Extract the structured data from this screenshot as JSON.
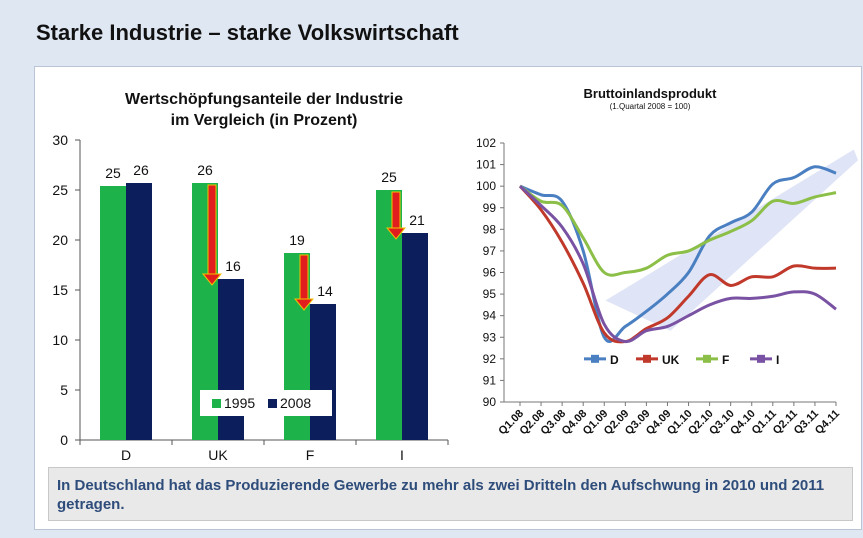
{
  "page": {
    "title": "Starke Industrie – starke Volkswirtschaft",
    "caption": "In Deutschland hat das Produzierende Gewerbe zu mehr als zwei Dritteln den Aufschwung in 2010 und 2011 getragen."
  },
  "colors": {
    "green": "#1eb34a",
    "navy": "#0c1f5c",
    "arrow_red": "#e11d1d",
    "arrow_edge": "#f3c200",
    "line_D": "#4a7fc1",
    "line_UK": "#c0392b",
    "line_F": "#8cbf47",
    "line_I": "#7a52a3"
  },
  "chart_data": [
    {
      "type": "bar",
      "title": "Wertschöpfungsanteile der Industrie im Vergleich (in Prozent)",
      "title_lines": [
        "Wertschöpfungsanteile der Industrie",
        "im Vergleich (in Prozent)"
      ],
      "categories": [
        "D",
        "UK",
        "F",
        "I"
      ],
      "series": [
        {
          "name": "1995",
          "values": [
            25.4,
            25.7,
            18.7,
            25.0
          ],
          "labels": [
            "25",
            "26",
            "19",
            "25"
          ]
        },
        {
          "name": "2008",
          "values": [
            25.7,
            16.1,
            13.6,
            20.7
          ],
          "labels": [
            "26",
            "16",
            "14",
            "21"
          ]
        }
      ],
      "ylim": [
        0,
        30
      ],
      "yticks": [
        0,
        5,
        10,
        15,
        20,
        25,
        30
      ],
      "legend_position": "bottom-center",
      "decline_arrows": [
        "UK",
        "F",
        "I"
      ]
    },
    {
      "type": "line",
      "title": "Bruttoinlandsprodukt",
      "subtitle": "(1.Quartal 2008 = 100)",
      "x": [
        "Q1.08",
        "Q2.08",
        "Q3.08",
        "Q4.08",
        "Q1.09",
        "Q2.09",
        "Q3.09",
        "Q4.09",
        "Q1.10",
        "Q2.10",
        "Q3.10",
        "Q4.10",
        "Q1.11",
        "Q2.11",
        "Q3.11",
        "Q4.11"
      ],
      "series": [
        {
          "name": "D",
          "values": [
            100,
            99.6,
            99.3,
            97.0,
            93.0,
            93.5,
            94.2,
            95.0,
            96.0,
            97.7,
            98.3,
            98.8,
            100.1,
            100.4,
            100.9,
            100.6
          ]
        },
        {
          "name": "UK",
          "values": [
            100,
            98.9,
            97.4,
            95.5,
            93.2,
            92.8,
            93.4,
            93.9,
            94.9,
            95.9,
            95.4,
            95.8,
            95.8,
            96.3,
            96.2,
            96.2
          ]
        },
        {
          "name": "F",
          "values": [
            100,
            99.3,
            99.1,
            97.6,
            96.0,
            96.0,
            96.2,
            96.8,
            97.0,
            97.5,
            97.9,
            98.4,
            99.3,
            99.2,
            99.5,
            99.7
          ]
        },
        {
          "name": "I",
          "values": [
            100,
            99.1,
            98.1,
            96.4,
            93.6,
            92.8,
            93.3,
            93.5,
            94.0,
            94.5,
            94.8,
            94.8,
            94.9,
            95.1,
            95.0,
            94.3
          ]
        }
      ],
      "ylim": [
        90,
        102
      ],
      "yticks": [
        90,
        91,
        92,
        93,
        94,
        95,
        96,
        97,
        98,
        99,
        100,
        101,
        102
      ],
      "legend_position": "center-left",
      "highlight": "recovery trend band"
    }
  ]
}
